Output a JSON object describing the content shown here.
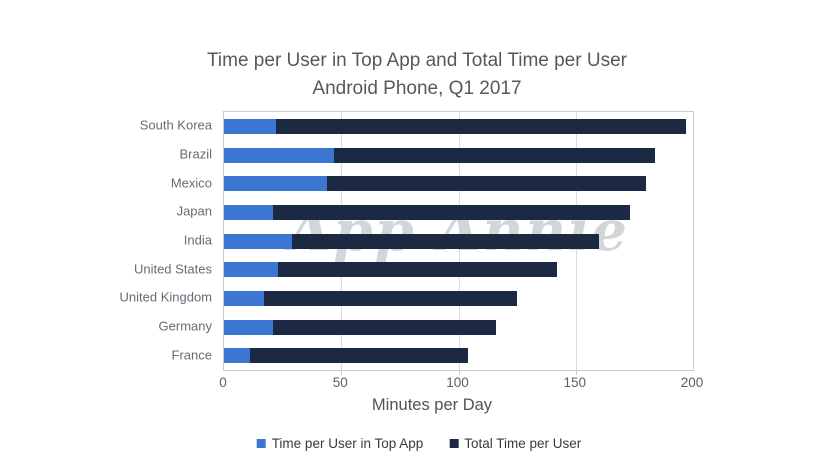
{
  "title": {
    "line1": "Time per User in Top App and Total Time per User",
    "line2": "Android Phone, Q1 2017"
  },
  "watermark": "App Annie",
  "chart_data": {
    "type": "bar",
    "orientation": "horizontal",
    "title": "Time per User in Top App and Total Time per User — Android Phone, Q1 2017",
    "categories": [
      "South Korea",
      "Brazil",
      "Mexico",
      "Japan",
      "India",
      "United States",
      "United Kingdom",
      "Germany",
      "France"
    ],
    "series": [
      {
        "name": "Time per User in Top App",
        "color": "#3b76d2",
        "values": [
          22,
          47,
          44,
          21,
          29,
          23,
          17,
          21,
          11
        ]
      },
      {
        "name": "Total Time per User",
        "color": "#1b2a42",
        "values": [
          197,
          184,
          180,
          173,
          160,
          142,
          125,
          116,
          104
        ]
      }
    ],
    "layout_note": "Top-app segment is overlaid on the start of each total-time bar",
    "xlabel": "Minutes per Day",
    "ylabel": "",
    "xlim": [
      0,
      200
    ],
    "xticks": [
      0,
      50,
      100,
      150,
      200
    ],
    "grid": "vertical gridlines at 50, 100, 150; plot area framed",
    "legend_position": "bottom"
  },
  "colors": {
    "top_app_blue": "#3b76d2",
    "total_navy": "#1b2a42",
    "gridline": "#d9dce0",
    "plot_border": "#c7ccd1",
    "axis_text": "#596069",
    "category_text": "#646c76",
    "title_text": "#54595f",
    "watermark_gray": "#d3d6d9",
    "background": "#ffffff"
  }
}
